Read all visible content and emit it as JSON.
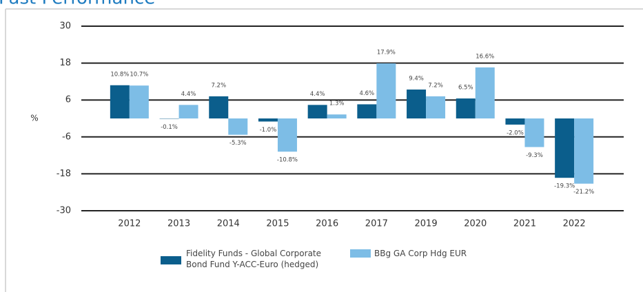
{
  "chart_data": {
    "type": "bar",
    "title": "Past Performance",
    "y_label": "%",
    "categories": [
      "2012",
      "2013",
      "2014",
      "2015",
      "2016",
      "2017",
      "2019",
      "2020",
      "2021",
      "2022"
    ],
    "series": [
      {
        "name": "Fidelity Funds - Global Corporate Bond Fund Y-ACC-Euro (hedged)",
        "color": "#0b5e8c",
        "values": [
          10.8,
          -0.1,
          7.2,
          -1.0,
          4.4,
          4.6,
          9.4,
          6.5,
          -2.0,
          -19.3
        ],
        "value_labels": [
          "10.8%",
          "-0.1%",
          "7.2%",
          "-1.0%",
          "4.4%",
          "4.6%",
          "9.4%",
          "6.5%",
          "-2.0%",
          "-19.3%"
        ]
      },
      {
        "name": "BBg GA Corp Hdg EUR",
        "color": "#7dbde6",
        "values": [
          10.7,
          4.4,
          -5.3,
          -10.8,
          1.3,
          17.9,
          7.2,
          16.6,
          -9.3,
          -21.2
        ],
        "value_labels": [
          "10.7%",
          "4.4%",
          "-5.3%",
          "-10.8%",
          "1.3%",
          "17.9%",
          "7.2%",
          "16.6%",
          "-9.3%",
          "-21.2%"
        ]
      }
    ],
    "ylim": [
      -30,
      30
    ],
    "yticks": [
      30,
      18,
      6,
      -6,
      -18,
      -30
    ],
    "grid": true,
    "legend": "bottom"
  }
}
